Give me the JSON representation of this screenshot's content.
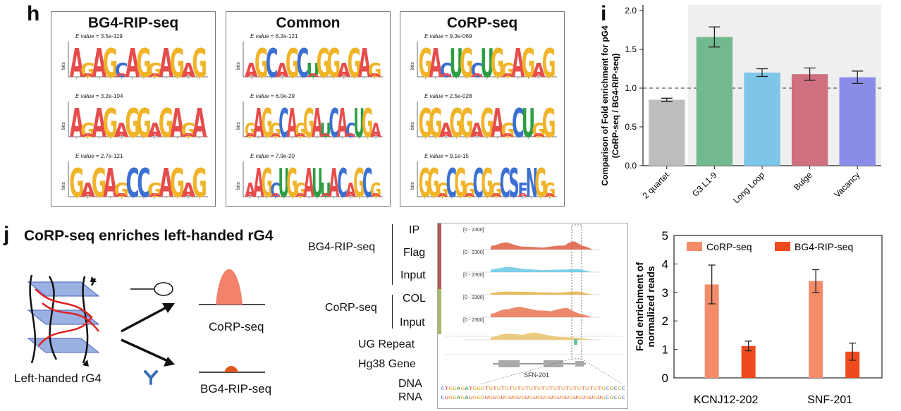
{
  "panel_h": {
    "letter": "h",
    "boxes": [
      {
        "title": "BG4-RIP-seq",
        "motifs": [
          {
            "evalue_label": "E value",
            "evalue": " = 3.5e-119",
            "letters": "AGAGCAGGAGAG"
          },
          {
            "evalue_label": "E value",
            "evalue": " = 3.2e-104",
            "letters": "AGAGAGGAGAGA"
          },
          {
            "evalue_label": "E value",
            "evalue": " = 2.7e-121",
            "letters": "GAGAGCCGAGAG"
          }
        ]
      },
      {
        "title": "Common",
        "motifs": [
          {
            "evalue_label": "E value",
            "evalue": " = 8.2e-121",
            "letters": "AGCAGCUGGAGAG"
          },
          {
            "evalue_label": "E value",
            "evalue": " = 6.0e-29",
            "letters": "GAGGCAGGAUCACUGA"
          },
          {
            "evalue_label": "E value",
            "evalue": " = 7.9e-20",
            "letters": "AAGCUGGAUUACAGCG"
          }
        ]
      },
      {
        "title": "CoRP-seq",
        "motifs": [
          {
            "evalue_label": "E value",
            "evalue": " = 9.3e-069",
            "letters": "GACUGCUGGAGAG"
          },
          {
            "evalue_label": "E value",
            "evalue": " = 2.5e-028",
            "letters": "GGAGGAGAGCUGG"
          },
          {
            "evalue_label": "E value",
            "evalue": " = 9.1e-15",
            "letters": "GGGCGGCGGCSFNGG"
          }
        ]
      }
    ],
    "bits_label": "bits"
  },
  "panel_i": {
    "letter": "i",
    "chart_data": {
      "type": "bar",
      "categories": [
        "2 quartet",
        "G3 L1-9",
        "Long Loop",
        "Bulge",
        "Vacancy"
      ],
      "values": [
        0.85,
        1.66,
        1.2,
        1.18,
        1.14
      ],
      "errors": [
        0.02,
        0.13,
        0.05,
        0.08,
        0.08
      ],
      "colors": [
        "#bdbdbd",
        "#72b98f",
        "#7dc6ea",
        "#cf6f7f",
        "#8b8be8"
      ],
      "ylabel": "Comparison of Fold enrichment for pG4 (CoRP-seq / BG4-RIP-seq)",
      "ylabel_line1": "Comparison of Fold enrichment for pG4",
      "ylabel_line2": "(CoRP-seq / BG4-RIP-seq)",
      "ylim": [
        0,
        2.0
      ],
      "yticks": [
        "0.0",
        "0.5",
        "1.0",
        "1.5",
        "2.0"
      ],
      "reference_line": 1.0
    }
  },
  "panel_j": {
    "letter": "j",
    "title": "CoRP-seq enriches left-handed rG4",
    "schematic": {
      "structure_label": "Left-handed rG4",
      "top_label": "CoRP-seq",
      "bottom_label": "BG4-RIP-seq"
    },
    "tracks": {
      "group1_label": "BG4-RIP-seq",
      "group2_label": "CoRP-seq",
      "rows": [
        {
          "label": "IP",
          "range": "[0 - 2300]",
          "color": "#e0664a"
        },
        {
          "label": "Flag",
          "range": "[0 - 2300]",
          "color": "#6ecbe5"
        },
        {
          "label": "Input",
          "range": "[0 - 2300]",
          "color": "#e6b54a"
        },
        {
          "label": "COL",
          "range": "[0 - 2300]",
          "color": "#e97c5d"
        },
        {
          "label": "Input",
          "range": "[0 - 2300]",
          "color": "#ecc56b"
        }
      ],
      "ug_label": "UG Repeat",
      "gene_label": "Hg38 Gene",
      "gene_name": "SFN-201",
      "dna_label": "DNA",
      "rna_label": "RNA",
      "dna_seq": "CTGGAGATGGGTGTGTGTGTGTGTGTGTGTGTGTGTGTGTGCGCGC",
      "rna_seq": "CUGGAGAUGGGUGUGUGUGUGUGUGUGUGUGUGUGUGUGUGCGCGC"
    },
    "chart_data": {
      "type": "bar",
      "categories": [
        "KCNJ12-202",
        "SNF-201"
      ],
      "series": [
        {
          "name": "CoRP-seq",
          "values": [
            3.28,
            3.4
          ],
          "errors": [
            0.68,
            0.4
          ],
          "color": "#f48c6a"
        },
        {
          "name": "BG4-RIP-seq",
          "values": [
            1.12,
            0.92
          ],
          "errors": [
            0.17,
            0.3
          ],
          "color": "#ef4a1d"
        }
      ],
      "ylabel": "Fold enrichment of normalized reads",
      "ylabel_line1": "Fold enrichment of",
      "ylabel_line2": "normalized reads",
      "ylim": [
        0,
        5
      ],
      "yticks": [
        "0",
        "1",
        "2",
        "3",
        "4",
        "5"
      ],
      "legend": "top"
    }
  }
}
